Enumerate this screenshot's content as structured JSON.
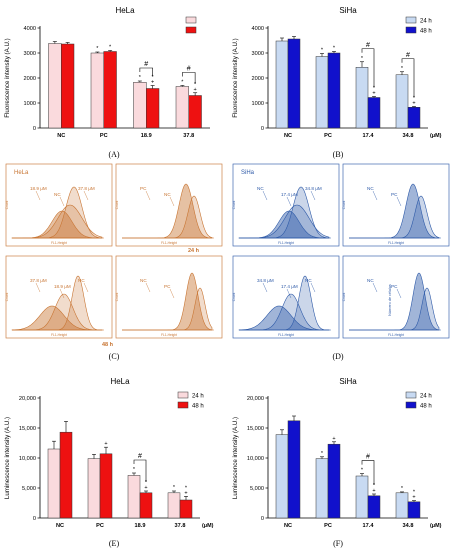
{
  "chart_data": [
    {
      "panel": "(A)",
      "type": "bar",
      "title": "HeLa",
      "ylabel": "Fluorescence intensity (A.U.)",
      "categories": [
        "NC",
        "PC",
        "18.9",
        "37.8"
      ],
      "unit_label": "",
      "ylim": [
        0,
        4000
      ],
      "yticks": [
        "0",
        "1000",
        "2000",
        "3000",
        "4000"
      ],
      "legend": {
        "placement": "top-right",
        "entries": [
          "",
          ""
        ]
      },
      "series": [
        {
          "values": [
            3380,
            3000,
            1830,
            1660
          ],
          "errors": [
            80,
            40,
            50,
            40
          ],
          "color": "#fadadd",
          "marks": [
            "",
            "*",
            "*",
            "*"
          ]
        },
        {
          "values": [
            3360,
            3060,
            1580,
            1300
          ],
          "errors": [
            60,
            40,
            120,
            110
          ],
          "color": "#ee1111",
          "marks": [
            "",
            "*",
            "*+",
            "*+"
          ]
        }
      ],
      "annotations": [
        {
          "category": 2,
          "text": "#"
        },
        {
          "category": 3,
          "text": "#"
        }
      ]
    },
    {
      "panel": "(B)",
      "type": "bar",
      "title": "SiHa",
      "ylabel": "Fluorescence intensity (A.U.)",
      "categories": [
        "NC",
        "PC",
        "17.4",
        "34.8"
      ],
      "unit_label": "(μM)",
      "ylim": [
        0,
        4000
      ],
      "yticks": [
        "0",
        "1000",
        "2000",
        "3000",
        "4000"
      ],
      "legend": {
        "placement": "top-right",
        "entries": [
          "24 h",
          "48 h"
        ]
      },
      "series": [
        {
          "name": "24 h",
          "values": [
            3480,
            2860,
            2430,
            2130
          ],
          "errors": [
            120,
            120,
            220,
            120
          ],
          "color": "#c8daf2",
          "marks": [
            "",
            "*",
            "*",
            "*"
          ]
        },
        {
          "name": "48 h",
          "values": [
            3560,
            3000,
            1220,
            830
          ],
          "errors": [
            100,
            60,
            40,
            30
          ],
          "color": "#1111cc",
          "marks": [
            "",
            "*",
            "*+",
            "*+"
          ]
        }
      ],
      "annotations": [
        {
          "category": 2,
          "text": "#"
        },
        {
          "category": 3,
          "text": "#"
        }
      ]
    },
    {
      "panel": "(E)",
      "type": "bar",
      "title": "HeLa",
      "ylabel": "Luminescence intensity (A.U.)",
      "categories": [
        "NC",
        "PC",
        "18.9",
        "37.8"
      ],
      "unit_label": "(μM)",
      "ylim": [
        0,
        20000
      ],
      "yticks": [
        "0",
        "5,000",
        "10,000",
        "15,000",
        "20,000"
      ],
      "legend": {
        "placement": "top-right",
        "entries": [
          "24 h",
          "48 h"
        ]
      },
      "series": [
        {
          "name": "24 h",
          "values": [
            11500,
            9900,
            7100,
            4200
          ],
          "errors": [
            1300,
            700,
            400,
            300
          ],
          "color": "#fadadd",
          "marks": [
            "",
            "",
            "*",
            "*"
          ]
        },
        {
          "name": "48 h",
          "values": [
            14300,
            10700,
            4200,
            3000
          ],
          "errors": [
            1800,
            1100,
            300,
            600
          ],
          "color": "#ee1111",
          "marks": [
            "",
            "+",
            "*+",
            "*+"
          ]
        }
      ],
      "annotations": [
        {
          "category": 2,
          "text": "#"
        }
      ]
    },
    {
      "panel": "(F)",
      "type": "bar",
      "title": "SiHa",
      "ylabel": "Luminescence intensity (A.U.)",
      "categories": [
        "NC",
        "PC",
        "17.4",
        "34.8"
      ],
      "unit_label": "(μM)",
      "ylim": [
        0,
        20000
      ],
      "yticks": [
        "0",
        "5,000",
        "10,000",
        "15,000",
        "20,000"
      ],
      "legend": {
        "placement": "top-right",
        "entries": [
          "24 h",
          "48 h"
        ]
      },
      "series": [
        {
          "name": "24 h",
          "values": [
            13900,
            9900,
            7000,
            4200
          ],
          "errors": [
            800,
            300,
            400,
            150
          ],
          "color": "#c8daf2",
          "marks": [
            "",
            "*",
            "*",
            "*"
          ]
        },
        {
          "name": "48 h",
          "values": [
            16200,
            12300,
            3700,
            2700
          ],
          "errors": [
            800,
            400,
            300,
            200
          ],
          "color": "#1111cc",
          "marks": [
            "",
            "+",
            "*+",
            "*+"
          ]
        }
      ],
      "annotations": [
        {
          "category": 2,
          "text": "#"
        }
      ]
    }
  ],
  "flow": {
    "C": {
      "panel": "(C)",
      "cell": "HeLa",
      "color": "#c87533",
      "axis_y": "Count",
      "axis_x": "FL1-Height",
      "times": [
        "24 h",
        "48 h"
      ],
      "quads": [
        {
          "labels": [
            "18.9 μM",
            "NC",
            "37.8 μM"
          ]
        },
        {
          "labels": [
            "PC",
            "NC"
          ]
        },
        {
          "labels": [
            "37.8 μM",
            "18.9 μM",
            "NC"
          ]
        },
        {
          "labels": [
            "NC",
            "PC"
          ]
        }
      ]
    },
    "D": {
      "panel": "(D)",
      "cell": "SiHa",
      "color": "#2e5aa8",
      "axis_y": "Count",
      "axis_x": "FL1-Height",
      "alt_axis": "Número de células",
      "times": [],
      "quads": [
        {
          "labels": [
            "NC",
            "17.4 μM",
            "34.8 μM"
          ]
        },
        {
          "labels": [
            "NC",
            "PC"
          ]
        },
        {
          "labels": [
            "34.8 μM",
            "17.4 μM",
            "NC"
          ]
        },
        {
          "labels": [
            "NC",
            "PC"
          ]
        }
      ]
    }
  }
}
